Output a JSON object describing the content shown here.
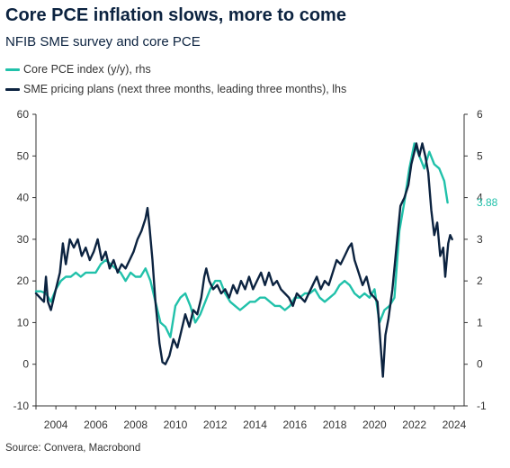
{
  "title": "Core PCE inflation slows, more to come",
  "subtitle": "NFIB SME survey and core PCE",
  "source": "Source: Convera, Macrobond",
  "colors": {
    "core_pce": "#21c1aa",
    "sme": "#0c2340",
    "axis": "#333333"
  },
  "chart_data": {
    "type": "line",
    "title": "Core PCE inflation slows, more to come",
    "subtitle": "NFIB SME survey and core PCE",
    "xlabel": "",
    "x_range": [
      2003.0,
      2024.5
    ],
    "x_ticks": [
      2004,
      2006,
      2008,
      2010,
      2012,
      2014,
      2016,
      2018,
      2020,
      2022,
      2024
    ],
    "y_left": {
      "label": "",
      "range": [
        -10,
        60
      ],
      "ticks": [
        -10,
        0,
        10,
        20,
        30,
        40,
        50,
        60
      ]
    },
    "y_right": {
      "label": "",
      "range": [
        -1,
        6
      ],
      "ticks": [
        -1,
        0,
        1,
        2,
        3,
        4,
        5,
        6
      ]
    },
    "grid": false,
    "legend_placement": "top-left",
    "end_label": "3.88",
    "series": [
      {
        "name": "Core PCE index (y/y), rhs",
        "axis": "right",
        "color": "#21c1aa",
        "points": [
          [
            2003.0,
            1.75
          ],
          [
            2003.25,
            1.75
          ],
          [
            2003.5,
            1.7
          ],
          [
            2003.75,
            1.5
          ],
          [
            2004.0,
            1.8
          ],
          [
            2004.25,
            2.0
          ],
          [
            2004.5,
            2.1
          ],
          [
            2004.75,
            2.1
          ],
          [
            2005.0,
            2.2
          ],
          [
            2005.25,
            2.1
          ],
          [
            2005.5,
            2.2
          ],
          [
            2005.75,
            2.2
          ],
          [
            2006.0,
            2.2
          ],
          [
            2006.25,
            2.4
          ],
          [
            2006.5,
            2.5
          ],
          [
            2006.75,
            2.4
          ],
          [
            2007.0,
            2.3
          ],
          [
            2007.25,
            2.2
          ],
          [
            2007.5,
            2.0
          ],
          [
            2007.75,
            2.2
          ],
          [
            2008.0,
            2.1
          ],
          [
            2008.25,
            2.1
          ],
          [
            2008.5,
            2.3
          ],
          [
            2008.75,
            2.0
          ],
          [
            2009.0,
            1.5
          ],
          [
            2009.25,
            1.0
          ],
          [
            2009.5,
            0.9
          ],
          [
            2009.75,
            0.65
          ],
          [
            2010.0,
            1.4
          ],
          [
            2010.25,
            1.6
          ],
          [
            2010.5,
            1.7
          ],
          [
            2010.75,
            1.4
          ],
          [
            2011.0,
            1.0
          ],
          [
            2011.25,
            1.2
          ],
          [
            2011.5,
            1.5
          ],
          [
            2011.75,
            1.8
          ],
          [
            2012.0,
            2.0
          ],
          [
            2012.25,
            2.0
          ],
          [
            2012.5,
            1.7
          ],
          [
            2012.75,
            1.5
          ],
          [
            2013.0,
            1.4
          ],
          [
            2013.25,
            1.3
          ],
          [
            2013.5,
            1.4
          ],
          [
            2013.75,
            1.5
          ],
          [
            2014.0,
            1.5
          ],
          [
            2014.25,
            1.6
          ],
          [
            2014.5,
            1.6
          ],
          [
            2014.75,
            1.5
          ],
          [
            2015.0,
            1.4
          ],
          [
            2015.25,
            1.4
          ],
          [
            2015.5,
            1.3
          ],
          [
            2015.75,
            1.4
          ],
          [
            2016.0,
            1.6
          ],
          [
            2016.25,
            1.6
          ],
          [
            2016.5,
            1.7
          ],
          [
            2016.75,
            1.7
          ],
          [
            2017.0,
            1.8
          ],
          [
            2017.25,
            1.6
          ],
          [
            2017.5,
            1.5
          ],
          [
            2017.75,
            1.6
          ],
          [
            2018.0,
            1.7
          ],
          [
            2018.25,
            1.9
          ],
          [
            2018.5,
            2.0
          ],
          [
            2018.75,
            1.9
          ],
          [
            2019.0,
            1.7
          ],
          [
            2019.25,
            1.6
          ],
          [
            2019.5,
            1.7
          ],
          [
            2019.75,
            1.6
          ],
          [
            2020.0,
            1.8
          ],
          [
            2020.25,
            1.0
          ],
          [
            2020.5,
            1.3
          ],
          [
            2020.75,
            1.4
          ],
          [
            2021.0,
            1.6
          ],
          [
            2021.25,
            3.2
          ],
          [
            2021.5,
            3.9
          ],
          [
            2021.75,
            4.7
          ],
          [
            2022.0,
            5.3
          ],
          [
            2022.25,
            5.0
          ],
          [
            2022.5,
            4.7
          ],
          [
            2022.75,
            5.1
          ],
          [
            2023.0,
            4.8
          ],
          [
            2023.25,
            4.7
          ],
          [
            2023.5,
            4.4
          ],
          [
            2023.67,
            3.88
          ]
        ]
      },
      {
        "name": "SME pricing plans (next three months, leading three months), lhs",
        "axis": "left",
        "color": "#0c2340",
        "points": [
          [
            2003.0,
            17.0
          ],
          [
            2003.2,
            16.0
          ],
          [
            2003.4,
            15.0
          ],
          [
            2003.5,
            21.0
          ],
          [
            2003.6,
            15.0
          ],
          [
            2003.75,
            13.0
          ],
          [
            2004.0,
            18.0
          ],
          [
            2004.2,
            22.0
          ],
          [
            2004.35,
            29.0
          ],
          [
            2004.5,
            24.0
          ],
          [
            2004.7,
            30.0
          ],
          [
            2004.9,
            28.0
          ],
          [
            2005.1,
            30.0
          ],
          [
            2005.3,
            26.0
          ],
          [
            2005.5,
            28.0
          ],
          [
            2005.7,
            25.0
          ],
          [
            2005.9,
            27.0
          ],
          [
            2006.1,
            30.0
          ],
          [
            2006.3,
            25.0
          ],
          [
            2006.5,
            27.0
          ],
          [
            2006.7,
            23.0
          ],
          [
            2006.9,
            25.0
          ],
          [
            2007.1,
            22.0
          ],
          [
            2007.3,
            24.0
          ],
          [
            2007.5,
            23.0
          ],
          [
            2007.7,
            25.0
          ],
          [
            2007.9,
            27.0
          ],
          [
            2008.1,
            30.0
          ],
          [
            2008.3,
            32.0
          ],
          [
            2008.5,
            35.0
          ],
          [
            2008.6,
            37.5
          ],
          [
            2008.7,
            33.0
          ],
          [
            2008.85,
            25.0
          ],
          [
            2009.0,
            15.0
          ],
          [
            2009.1,
            10.0
          ],
          [
            2009.2,
            5.0
          ],
          [
            2009.35,
            0.5
          ],
          [
            2009.5,
            0.0
          ],
          [
            2009.7,
            2.0
          ],
          [
            2009.9,
            6.0
          ],
          [
            2010.1,
            4.0
          ],
          [
            2010.3,
            8.0
          ],
          [
            2010.5,
            12.0
          ],
          [
            2010.7,
            9.0
          ],
          [
            2010.9,
            13.0
          ],
          [
            2011.1,
            12.0
          ],
          [
            2011.3,
            16.0
          ],
          [
            2011.45,
            21.0
          ],
          [
            2011.55,
            23.0
          ],
          [
            2011.7,
            20.0
          ],
          [
            2011.9,
            18.0
          ],
          [
            2012.1,
            19.0
          ],
          [
            2012.3,
            17.0
          ],
          [
            2012.5,
            18.0
          ],
          [
            2012.7,
            16.0
          ],
          [
            2012.9,
            19.0
          ],
          [
            2013.1,
            17.0
          ],
          [
            2013.3,
            20.0
          ],
          [
            2013.5,
            18.0
          ],
          [
            2013.7,
            21.0
          ],
          [
            2013.9,
            18.0
          ],
          [
            2014.1,
            20.0
          ],
          [
            2014.3,
            22.0
          ],
          [
            2014.5,
            19.0
          ],
          [
            2014.7,
            22.0
          ],
          [
            2014.9,
            19.0
          ],
          [
            2015.1,
            20.0
          ],
          [
            2015.3,
            18.0
          ],
          [
            2015.5,
            17.0
          ],
          [
            2015.7,
            16.0
          ],
          [
            2015.9,
            14.0
          ],
          [
            2016.1,
            17.0
          ],
          [
            2016.3,
            16.0
          ],
          [
            2016.5,
            15.0
          ],
          [
            2016.7,
            17.0
          ],
          [
            2016.9,
            19.0
          ],
          [
            2017.1,
            21.0
          ],
          [
            2017.3,
            18.0
          ],
          [
            2017.5,
            20.0
          ],
          [
            2017.7,
            19.0
          ],
          [
            2017.9,
            22.0
          ],
          [
            2018.1,
            25.0
          ],
          [
            2018.3,
            24.0
          ],
          [
            2018.5,
            26.0
          ],
          [
            2018.7,
            28.0
          ],
          [
            2018.85,
            29.0
          ],
          [
            2019.0,
            25.0
          ],
          [
            2019.2,
            22.0
          ],
          [
            2019.4,
            19.0
          ],
          [
            2019.6,
            21.0
          ],
          [
            2019.8,
            17.0
          ],
          [
            2020.0,
            16.0
          ],
          [
            2020.15,
            15.0
          ],
          [
            2020.3,
            5.0
          ],
          [
            2020.42,
            -3.0
          ],
          [
            2020.55,
            7.0
          ],
          [
            2020.7,
            11.0
          ],
          [
            2020.9,
            18.0
          ],
          [
            2021.1,
            28.0
          ],
          [
            2021.3,
            38.0
          ],
          [
            2021.5,
            40.0
          ],
          [
            2021.7,
            43.0
          ],
          [
            2021.85,
            48.0
          ],
          [
            2022.0,
            51.0
          ],
          [
            2022.1,
            53.0
          ],
          [
            2022.25,
            50.0
          ],
          [
            2022.4,
            53.0
          ],
          [
            2022.55,
            50.0
          ],
          [
            2022.7,
            46.0
          ],
          [
            2022.85,
            37.0
          ],
          [
            2023.0,
            31.0
          ],
          [
            2023.15,
            34.0
          ],
          [
            2023.3,
            26.0
          ],
          [
            2023.45,
            28.0
          ],
          [
            2023.55,
            21.0
          ],
          [
            2023.7,
            29.0
          ],
          [
            2023.8,
            31.0
          ],
          [
            2023.9,
            30.0
          ]
        ]
      }
    ]
  }
}
